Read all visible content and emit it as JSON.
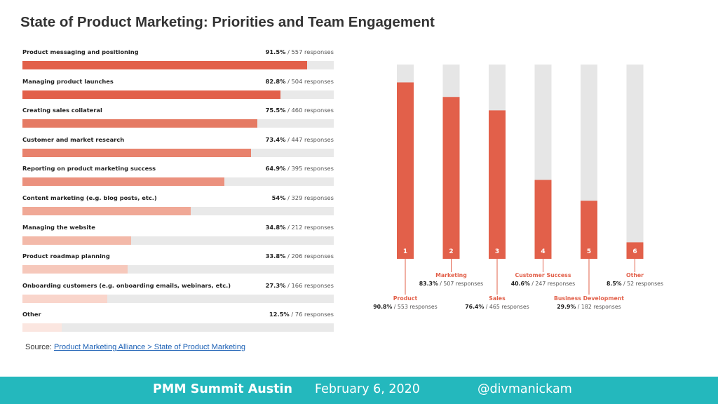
{
  "slide": {
    "title": "State of Product Marketing: Priorities and Team Engagement",
    "source_prefix": "Source: ",
    "source_link_text": "Product Marketing Alliance > State of Product Marketing"
  },
  "footer": {
    "event": "PMM Summit Austin",
    "date": "February 6, 2020",
    "handle": "@divmanickam",
    "background_color": "#24b8bd"
  },
  "chart_data": [
    {
      "type": "bar",
      "orientation": "horizontal",
      "categories": [
        "Product messaging and positioning",
        "Managing product launches",
        "Creating sales collateral",
        "Customer and market research",
        "Reporting on product marketing success",
        "Content marketing (e.g. blog posts, etc.)",
        "Managing the website",
        "Product roadmap planning",
        "Onboarding customers (e.g. onboarding emails, webinars, etc.)",
        "Other"
      ],
      "values": [
        91.5,
        82.8,
        75.5,
        73.4,
        64.9,
        54,
        34.8,
        33.8,
        27.3,
        12.5
      ],
      "value_labels": [
        "91.5%",
        "82.8%",
        "75.5%",
        "73.4%",
        "64.9%",
        "54%",
        "34.8%",
        "33.8%",
        "27.3%",
        "12.5%"
      ],
      "response_labels": [
        "/ 557 responses",
        "/ 504 responses",
        "/ 460 responses",
        "/ 447 responses",
        "/ 395 responses",
        "/ 329 responses",
        "/ 212 responses",
        "/ 206 responses",
        "/ 166 responses",
        "/ 76 responses"
      ],
      "xlim": [
        0,
        100
      ],
      "colors": [
        "#e2604a",
        "#e2604a",
        "#e57a63",
        "#e8826d",
        "#eb917e",
        "#f0a896",
        "#f3b9a9",
        "#f6c8bb",
        "#f9d5cb",
        "#fbe6e0"
      ],
      "track_color": "#e9e9e9"
    },
    {
      "type": "bar",
      "orientation": "vertical",
      "categories": [
        "Product",
        "Marketing",
        "Sales",
        "Customer Success",
        "Business Development",
        "Other"
      ],
      "ranks": [
        "1",
        "2",
        "3",
        "4",
        "5",
        "6"
      ],
      "values": [
        90.8,
        83.3,
        76.4,
        40.6,
        29.9,
        8.5
      ],
      "value_labels": [
        "90.8%",
        "83.3%",
        "76.4%",
        "40.6%",
        "29.9%",
        "8.5%"
      ],
      "response_labels": [
        "/ 553 responses",
        "/ 507 responses",
        "/ 465 responses",
        "/ 247 responses",
        "/ 182 responses",
        "/ 52 responses"
      ],
      "ylim": [
        0,
        100
      ],
      "bar_color": "#e2604a",
      "track_color": "#e6e6e6",
      "label_color": "#e2604a"
    }
  ]
}
